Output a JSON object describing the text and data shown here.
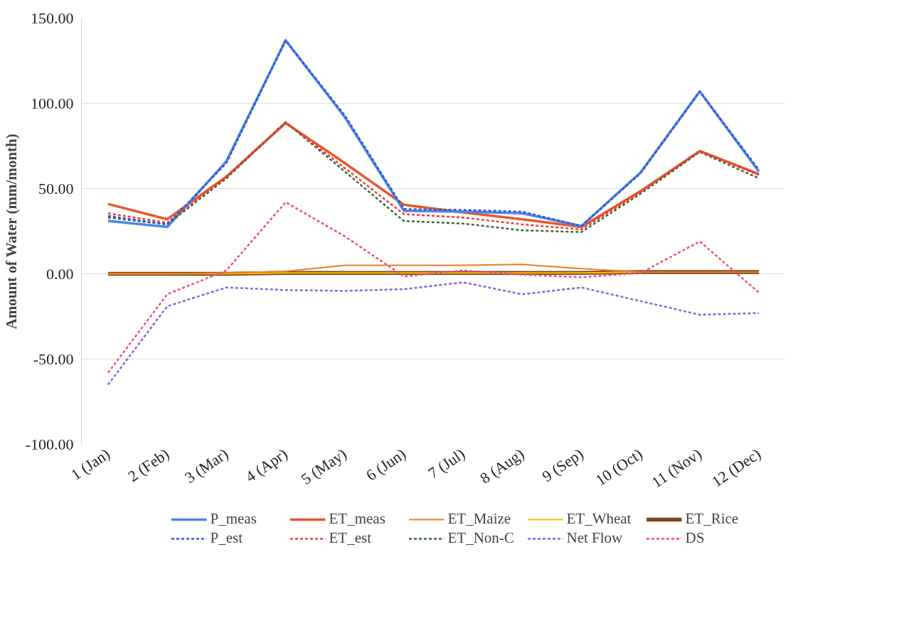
{
  "chart_data": {
    "type": "line",
    "ylabel": "Amount of Water (mm/month)",
    "categories": [
      "1 (Jan)",
      "2 (Feb)",
      "3 (Mar)",
      "4 (Apr)",
      "5 (May)",
      "6 (Jun)",
      "7 (Jul)",
      "8 (Aug)",
      "9 (Sep)",
      "10 (Oct)",
      "11 (Nov)",
      "12 (Dec)"
    ],
    "ylim": [
      -100,
      150
    ],
    "yticks": [
      {
        "value": -100,
        "label": "-100.00"
      },
      {
        "value": -50,
        "label": "-50.00"
      },
      {
        "value": 0,
        "label": "0.00"
      },
      {
        "value": 50,
        "label": "50.00"
      },
      {
        "value": 100,
        "label": "100.00"
      },
      {
        "value": 150,
        "label": "150.00"
      }
    ],
    "grid": "y",
    "legend": "bottom",
    "series": [
      {
        "name": "P_meas",
        "color": "#4a86e8",
        "line_style": "solid",
        "values": [
          31,
          27.5,
          66,
          137,
          92,
          37,
          36.5,
          35.5,
          28,
          59.5,
          107,
          60
        ]
      },
      {
        "name": "ET_meas",
        "color": "#e8562a",
        "line_style": "solid",
        "values": [
          41,
          32,
          57,
          88.5,
          65,
          40.5,
          36,
          32,
          27.5,
          48.5,
          72,
          58.5
        ]
      },
      {
        "name": "ET_Maize",
        "color": "#ee7d22",
        "line_style": "solid",
        "values": [
          0,
          0,
          0.5,
          1.5,
          5,
          5,
          5,
          5.5,
          3,
          1,
          1,
          1
        ]
      },
      {
        "name": "ET_Wheat",
        "color": "#ffc000",
        "line_style": "solid",
        "values": [
          0,
          0,
          0,
          0.5,
          0.5,
          0.5,
          0.5,
          0.5,
          0.5,
          1,
          1,
          1
        ]
      },
      {
        "name": "ET_Rice",
        "color": "#7b4a1e",
        "line_style": "solid",
        "values": [
          0,
          0,
          0,
          0.5,
          0.5,
          0.5,
          0.5,
          0.5,
          0.5,
          1,
          1,
          1
        ]
      },
      {
        "name": "P_est",
        "color": "#3355cc",
        "line_style": "dashed",
        "values": [
          34,
          29,
          65,
          137,
          93,
          38,
          37.5,
          36.5,
          28,
          59,
          107,
          61
        ]
      },
      {
        "name": "ET_est",
        "color": "#ee3b3b",
        "line_style": "dashed",
        "values": [
          35.5,
          30,
          57,
          89,
          62,
          35,
          33,
          29,
          26,
          48,
          72,
          58
        ]
      },
      {
        "name": "ET_Non-C",
        "color": "#3a6b35",
        "line_style": "dashed",
        "values": [
          33,
          29,
          56,
          89,
          60,
          31,
          29.5,
          25.5,
          24.5,
          47,
          71.5,
          56
        ]
      },
      {
        "name": "Net Flow",
        "color": "#8066dd",
        "line_style": "dashed",
        "values": [
          -65,
          -19,
          -8,
          -9.5,
          -10,
          -9,
          -5,
          -12,
          -8,
          -16,
          -24,
          -23
        ]
      },
      {
        "name": "DS",
        "color": "#ee4d88",
        "line_style": "dashed",
        "values": [
          -58,
          -12,
          2,
          42,
          22,
          -1.5,
          2,
          -0.5,
          -2,
          0.5,
          19,
          -11
        ]
      }
    ]
  }
}
